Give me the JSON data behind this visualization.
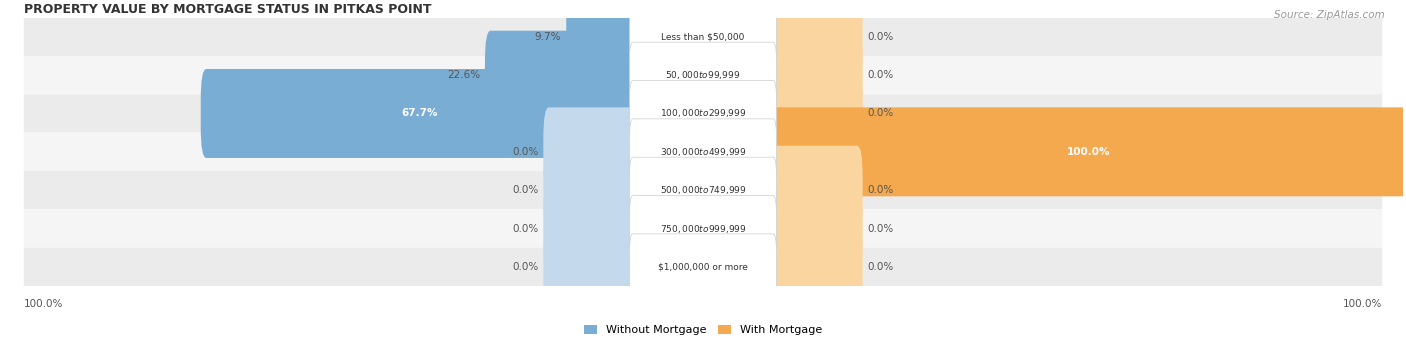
{
  "title": "PROPERTY VALUE BY MORTGAGE STATUS IN PITKAS POINT",
  "source": "Source: ZipAtlas.com",
  "categories": [
    "Less than $50,000",
    "$50,000 to $99,999",
    "$100,000 to $299,999",
    "$300,000 to $499,999",
    "$500,000 to $749,999",
    "$750,000 to $999,999",
    "$1,000,000 or more"
  ],
  "without_mortgage": [
    9.7,
    22.6,
    67.7,
    0.0,
    0.0,
    0.0,
    0.0
  ],
  "with_mortgage": [
    0.0,
    0.0,
    0.0,
    100.0,
    0.0,
    0.0,
    0.0
  ],
  "without_mortgage_color": "#7aadd4",
  "with_mortgage_color": "#f5a94e",
  "without_mortgage_light": "#c5d9ed",
  "with_mortgage_light": "#fad5a0",
  "row_bg_color": "#ebebeb",
  "row_bg_color2": "#f5f5f5",
  "figsize": [
    14.06,
    3.41
  ],
  "dpi": 100
}
